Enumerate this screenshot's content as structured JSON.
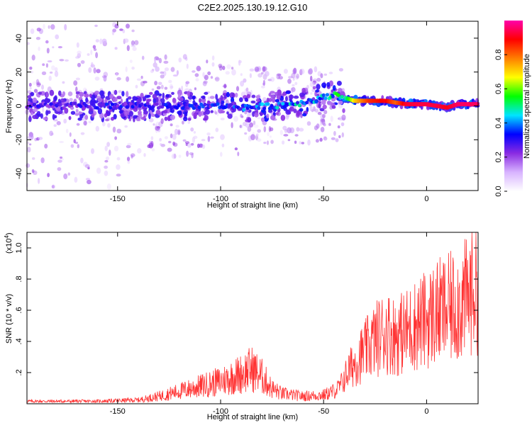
{
  "chart_data": [
    {
      "type": "heatmap",
      "title": "C2E2.2025.130.19.12.G10",
      "xlabel": "Height of straight line (km)",
      "ylabel": "Frequency (Hz)",
      "xlim": [
        -194,
        25
      ],
      "ylim": [
        -50,
        50
      ],
      "x_ticks": [
        -150,
        -100,
        -50,
        0
      ],
      "y_ticks": [
        -40,
        -20,
        0,
        20,
        40
      ],
      "colorbar": {
        "label": "Normalized spectral amplitude",
        "range": [
          0,
          1
        ],
        "ticks": [
          0.0,
          0.2,
          0.4,
          0.6,
          0.8
        ],
        "colors": [
          "#ffffff",
          "#d8b4ff",
          "#8a2be2",
          "#0000ff",
          "#00e5ff",
          "#00ff00",
          "#ffff00",
          "#ff7f00",
          "#ff0000",
          "#ff00aa"
        ]
      },
      "ridge": {
        "x": [
          -194,
          -175,
          -150,
          -125,
          -100,
          -90,
          -75,
          -60,
          -50,
          -44,
          -40,
          -35,
          -28,
          -20,
          -15,
          -10,
          -5,
          0,
          5,
          10,
          15,
          20,
          25
        ],
        "y": [
          0,
          0,
          0,
          0,
          0,
          -1,
          0,
          2,
          5,
          7,
          5,
          3,
          3,
          3,
          2,
          1,
          1,
          1,
          0,
          -1,
          1,
          1,
          1
        ],
        "amplitude": [
          0.28,
          0.28,
          0.3,
          0.3,
          0.32,
          0.35,
          0.4,
          0.42,
          0.45,
          0.5,
          0.45,
          0.7,
          0.85,
          0.9,
          0.8,
          0.92,
          0.93,
          0.93,
          0.93,
          0.9,
          0.95,
          0.95,
          0.95
        ]
      }
    },
    {
      "type": "line",
      "xlabel": "Height of straight line (km)",
      "ylabel": "SNR (10 * v/v)",
      "y_scale_note": "(x10",
      "y_scale_exp": "4",
      "y_scale_close": ")",
      "xlim": [
        -194,
        25
      ],
      "ylim": [
        0,
        1.1
      ],
      "x_ticks": [
        -150,
        -100,
        -50,
        0
      ],
      "y_ticks": [
        0.2,
        0.4,
        0.6,
        0.8,
        1.0
      ],
      "color": "#ff3333",
      "envelope": {
        "x": [
          -194,
          -160,
          -140,
          -130,
          -120,
          -110,
          -100,
          -90,
          -85,
          -80,
          -75,
          -70,
          -60,
          -50,
          -45,
          -42,
          -38,
          -35,
          -30,
          -25,
          -20,
          -15,
          -10,
          -5,
          0,
          5,
          10,
          15,
          20,
          23,
          25
        ],
        "y": [
          0.02,
          0.02,
          0.03,
          0.06,
          0.1,
          0.14,
          0.18,
          0.24,
          0.28,
          0.22,
          0.12,
          0.08,
          0.06,
          0.07,
          0.1,
          0.15,
          0.28,
          0.35,
          0.45,
          0.55,
          0.62,
          0.58,
          0.62,
          0.68,
          0.72,
          0.78,
          0.8,
          0.85,
          0.9,
          1.05,
          0.98
        ]
      }
    }
  ]
}
